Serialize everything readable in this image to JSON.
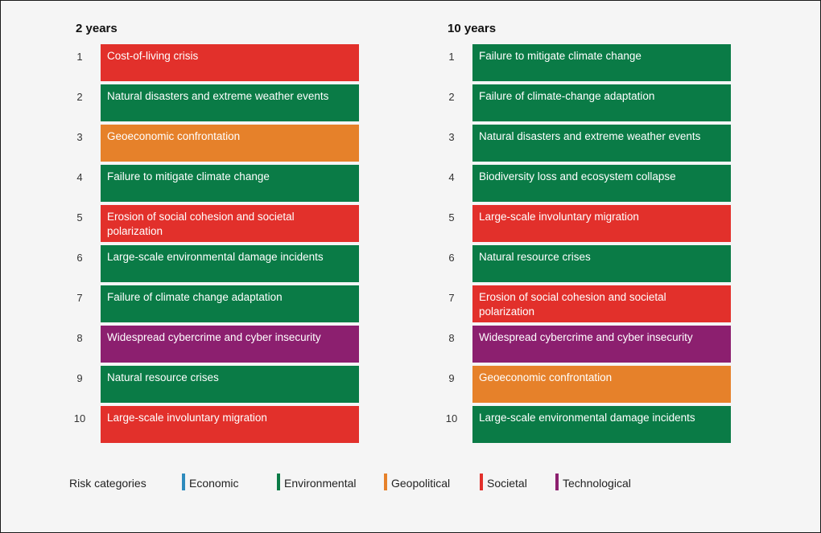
{
  "colors": {
    "Economic": "#2e8bbd",
    "Environmental": "#0a7b46",
    "Geopolitical": "#e6812a",
    "Societal": "#e2302b",
    "Technological": "#8c1f6f"
  },
  "left": {
    "title": "2 years",
    "items": [
      {
        "rank": "1",
        "label": "Cost-of-living crisis",
        "category": "Societal"
      },
      {
        "rank": "2",
        "label": "Natural disasters and extreme weather events",
        "category": "Environmental"
      },
      {
        "rank": "3",
        "label": "Geoeconomic confrontation",
        "category": "Geopolitical"
      },
      {
        "rank": "4",
        "label": "Failure to mitigate climate change",
        "category": "Environmental"
      },
      {
        "rank": "5",
        "label": "Erosion of social cohesion and societal polarization",
        "category": "Societal"
      },
      {
        "rank": "6",
        "label": "Large-scale environmental damage incidents",
        "category": "Environmental"
      },
      {
        "rank": "7",
        "label": "Failure of climate change adaptation",
        "category": "Environmental"
      },
      {
        "rank": "8",
        "label": "Widespread cybercrime and cyber insecurity",
        "category": "Technological"
      },
      {
        "rank": "9",
        "label": "Natural resource crises",
        "category": "Environmental"
      },
      {
        "rank": "10",
        "label": "Large-scale involuntary migration",
        "category": "Societal"
      }
    ]
  },
  "right": {
    "title": "10 years",
    "items": [
      {
        "rank": "1",
        "label": "Failure to mitigate climate change",
        "category": "Environmental"
      },
      {
        "rank": "2",
        "label": "Failure of climate-change adaptation",
        "category": "Environmental"
      },
      {
        "rank": "3",
        "label": "Natural disasters and extreme weather events",
        "category": "Environmental"
      },
      {
        "rank": "4",
        "label": "Biodiversity loss and ecosystem collapse",
        "category": "Environmental"
      },
      {
        "rank": "5",
        "label": "Large-scale involuntary migration",
        "category": "Societal"
      },
      {
        "rank": "6",
        "label": "Natural resource crises",
        "category": "Environmental"
      },
      {
        "rank": "7",
        "label": "Erosion of social cohesion and societal polarization",
        "category": "Societal"
      },
      {
        "rank": "8",
        "label": "Widespread cybercrime and cyber insecurity",
        "category": "Technological"
      },
      {
        "rank": "9",
        "label": "Geoeconomic confrontation",
        "category": "Geopolitical"
      },
      {
        "rank": "10",
        "label": "Large-scale environmental damage incidents",
        "category": "Environmental"
      }
    ]
  },
  "legend": {
    "title": "Risk categories",
    "items": [
      "Economic",
      "Environmental",
      "Geopolitical",
      "Societal",
      "Technological"
    ]
  }
}
